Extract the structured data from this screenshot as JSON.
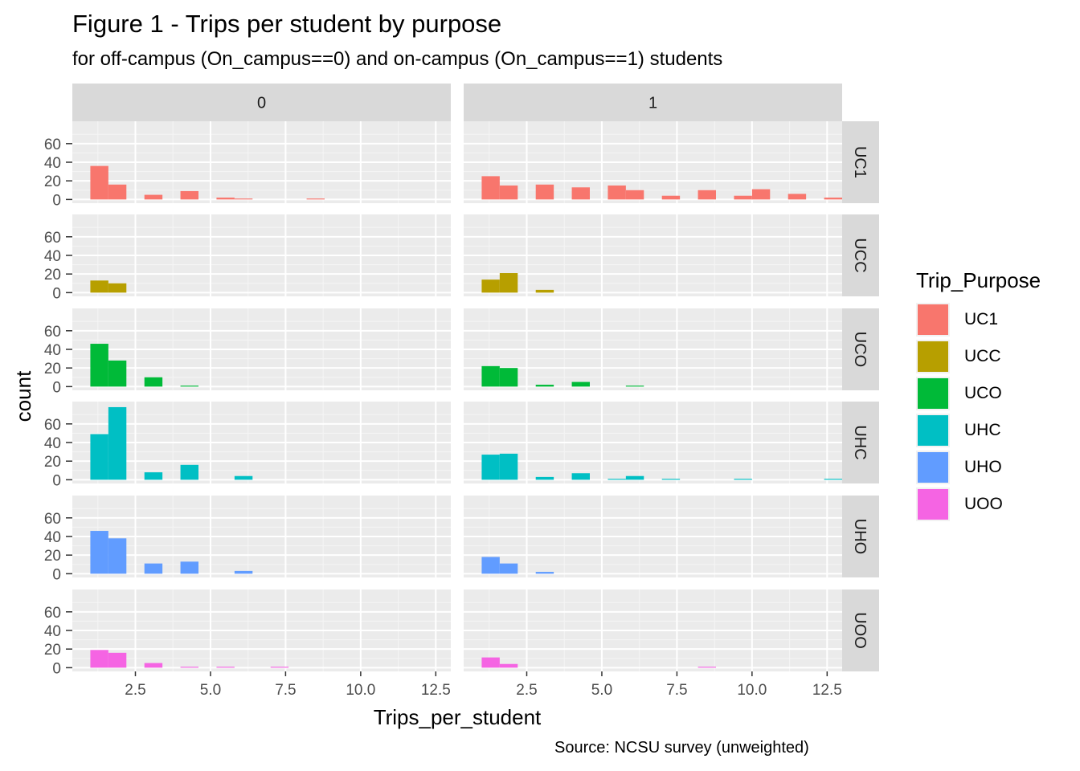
{
  "header": {
    "title": "Figure 1 - Trips per student by purpose",
    "subtitle": "for off-campus (On_campus==0) and on-campus (On_campus==1) students",
    "caption": "Source: NCSU survey (unweighted)"
  },
  "chart_data": {
    "type": "bar",
    "xlabel": "Trips_per_student",
    "ylabel": "count",
    "xlim": [
      0.4,
      13.0
    ],
    "ylim": [
      -4,
      84
    ],
    "x_ticks": [
      2.5,
      5.0,
      7.5,
      10.0,
      12.5
    ],
    "x_tick_labels": [
      "2.5",
      "5.0",
      "7.5",
      "10.0",
      "12.5"
    ],
    "y_ticks": [
      0,
      20,
      40,
      60
    ],
    "y_tick_labels": [
      "0",
      "20",
      "40",
      "60"
    ],
    "bin_width": 0.6,
    "grid": true,
    "legend_position": "right",
    "column_facets": [
      "0",
      "1"
    ],
    "row_facets": [
      "UC1",
      "UCC",
      "UCO",
      "UHC",
      "UHO",
      "UOO"
    ],
    "legend": {
      "title": "Trip_Purpose",
      "entries": [
        {
          "label": "UC1",
          "color": "#F8766D"
        },
        {
          "label": "UCC",
          "color": "#B79F00"
        },
        {
          "label": "UCO",
          "color": "#00BA38"
        },
        {
          "label": "UHC",
          "color": "#00BFC4"
        },
        {
          "label": "UHO",
          "color": "#619CFF"
        },
        {
          "label": "UOO",
          "color": "#F564E3"
        }
      ]
    },
    "panels": [
      {
        "column": "0",
        "row": "UC1",
        "bins": [
          [
            1.3,
            36
          ],
          [
            1.9,
            16
          ],
          [
            3.1,
            5
          ],
          [
            4.3,
            9
          ],
          [
            5.5,
            2
          ],
          [
            6.1,
            1
          ],
          [
            8.5,
            1
          ]
        ]
      },
      {
        "column": "1",
        "row": "UC1",
        "bins": [
          [
            1.3,
            25
          ],
          [
            1.9,
            15
          ],
          [
            3.1,
            16
          ],
          [
            4.3,
            13
          ],
          [
            5.5,
            15
          ],
          [
            6.1,
            10
          ],
          [
            7.3,
            4
          ],
          [
            8.5,
            10
          ],
          [
            9.7,
            4
          ],
          [
            10.3,
            11
          ],
          [
            11.5,
            6
          ],
          [
            12.7,
            2
          ]
        ]
      },
      {
        "column": "0",
        "row": "UCC",
        "bins": [
          [
            1.3,
            13
          ],
          [
            1.9,
            10
          ]
        ]
      },
      {
        "column": "1",
        "row": "UCC",
        "bins": [
          [
            1.3,
            14
          ],
          [
            1.9,
            21
          ],
          [
            3.1,
            3
          ]
        ]
      },
      {
        "column": "0",
        "row": "UCO",
        "bins": [
          [
            1.3,
            46
          ],
          [
            1.9,
            28
          ],
          [
            3.1,
            10
          ],
          [
            4.3,
            1
          ]
        ]
      },
      {
        "column": "1",
        "row": "UCO",
        "bins": [
          [
            1.3,
            22
          ],
          [
            1.9,
            20
          ],
          [
            3.1,
            2
          ],
          [
            4.3,
            5
          ],
          [
            6.1,
            1
          ]
        ]
      },
      {
        "column": "0",
        "row": "UHC",
        "bins": [
          [
            1.3,
            49
          ],
          [
            1.9,
            78
          ],
          [
            3.1,
            8
          ],
          [
            4.3,
            16
          ],
          [
            6.1,
            4
          ]
        ]
      },
      {
        "column": "1",
        "row": "UHC",
        "bins": [
          [
            1.3,
            27
          ],
          [
            1.9,
            28
          ],
          [
            3.1,
            3
          ],
          [
            4.3,
            7
          ],
          [
            5.5,
            1
          ],
          [
            6.1,
            4
          ],
          [
            7.3,
            1
          ],
          [
            9.7,
            1
          ],
          [
            12.7,
            1
          ]
        ]
      },
      {
        "column": "0",
        "row": "UHO",
        "bins": [
          [
            1.3,
            46
          ],
          [
            1.9,
            38
          ],
          [
            3.1,
            11
          ],
          [
            4.3,
            13
          ],
          [
            6.1,
            3
          ]
        ]
      },
      {
        "column": "1",
        "row": "UHO",
        "bins": [
          [
            1.3,
            18
          ],
          [
            1.9,
            11
          ],
          [
            3.1,
            2
          ]
        ]
      },
      {
        "column": "0",
        "row": "UOO",
        "bins": [
          [
            1.3,
            19
          ],
          [
            1.9,
            16
          ],
          [
            3.1,
            5
          ],
          [
            4.3,
            1
          ],
          [
            5.5,
            1
          ],
          [
            7.3,
            1
          ]
        ]
      },
      {
        "column": "1",
        "row": "UOO",
        "bins": [
          [
            1.3,
            11
          ],
          [
            1.9,
            4
          ],
          [
            8.5,
            1
          ]
        ]
      }
    ]
  }
}
